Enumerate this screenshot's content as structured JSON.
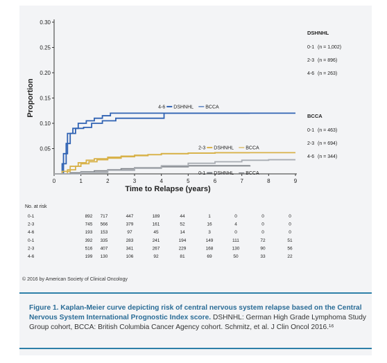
{
  "chart_data": {
    "type": "line",
    "xlabel": "Time to Relapse (years)",
    "ylabel": "Proportion",
    "xlim": [
      0,
      9
    ],
    "ylim": [
      0,
      0.3
    ],
    "x_ticks": [
      "0",
      "1",
      "2",
      "3",
      "4",
      "5",
      "6",
      "7",
      "8",
      "9"
    ],
    "y_ticks": [
      "0.30",
      "0.25",
      "0.20",
      "0.15",
      "0.10",
      "0.05"
    ],
    "series": [
      {
        "name": "DSHNHL 4-6",
        "color": "#2f62b3",
        "points": [
          [
            0,
            0
          ],
          [
            0.2,
            0
          ],
          [
            0.35,
            0.04
          ],
          [
            0.5,
            0.08
          ],
          [
            0.7,
            0.09
          ],
          [
            0.9,
            0.1
          ],
          [
            1.2,
            0.105
          ],
          [
            1.5,
            0.11
          ],
          [
            1.8,
            0.115
          ],
          [
            2.1,
            0.12
          ],
          [
            4.4,
            0.12
          ],
          [
            7.0,
            0.12
          ],
          [
            7.3,
            0.12
          ]
        ]
      },
      {
        "name": "BCCA 4-6",
        "color": "#2f62b3",
        "points": [
          [
            0,
            0
          ],
          [
            0.15,
            0
          ],
          [
            0.3,
            0.02
          ],
          [
            0.45,
            0.06
          ],
          [
            0.6,
            0.08
          ],
          [
            0.8,
            0.09
          ],
          [
            1.1,
            0.092
          ],
          [
            1.4,
            0.1
          ],
          [
            1.8,
            0.105
          ],
          [
            2.3,
            0.11
          ],
          [
            4.0,
            0.11
          ],
          [
            4.1,
            0.12
          ],
          [
            9.0,
            0.12
          ]
        ]
      },
      {
        "name": "DSHNHL 2-3",
        "color": "#d8b24a",
        "points": [
          [
            0,
            0
          ],
          [
            0.3,
            0.005
          ],
          [
            0.6,
            0.015
          ],
          [
            0.9,
            0.022
          ],
          [
            1.2,
            0.027
          ],
          [
            1.5,
            0.03
          ],
          [
            2.0,
            0.033
          ],
          [
            2.5,
            0.035
          ],
          [
            3.0,
            0.037
          ],
          [
            3.5,
            0.038
          ],
          [
            4.0,
            0.04
          ],
          [
            5.0,
            0.041
          ],
          [
            6.0,
            0.042
          ],
          [
            7.3,
            0.042
          ]
        ]
      },
      {
        "name": "BCCA 2-3",
        "color": "#d8b24a",
        "points": [
          [
            0,
            0
          ],
          [
            0.5,
            0.008
          ],
          [
            0.8,
            0.015
          ],
          [
            1.0,
            0.02
          ],
          [
            1.3,
            0.024
          ],
          [
            1.6,
            0.028
          ],
          [
            2.0,
            0.031
          ],
          [
            2.5,
            0.034
          ],
          [
            3.0,
            0.036
          ],
          [
            3.5,
            0.038
          ],
          [
            4.0,
            0.04
          ],
          [
            5.0,
            0.041
          ],
          [
            6.0,
            0.042
          ],
          [
            9.0,
            0.042
          ]
        ]
      },
      {
        "name": "DSHNHL 0-1",
        "color": "#7e8288",
        "points": [
          [
            0,
            0
          ],
          [
            0.6,
            0.002
          ],
          [
            1.0,
            0.004
          ],
          [
            1.5,
            0.006
          ],
          [
            2.0,
            0.008
          ],
          [
            2.5,
            0.01
          ],
          [
            3.0,
            0.012
          ],
          [
            4.0,
            0.014
          ],
          [
            5.0,
            0.016
          ],
          [
            7.3,
            0.017
          ]
        ]
      },
      {
        "name": "BCCA 0-1",
        "color": "#a8acb2",
        "points": [
          [
            0,
            0
          ],
          [
            1.0,
            0.003
          ],
          [
            2.0,
            0.007
          ],
          [
            3.0,
            0.011
          ],
          [
            4.0,
            0.016
          ],
          [
            5.0,
            0.021
          ],
          [
            6.0,
            0.024
          ],
          [
            7.0,
            0.027
          ],
          [
            8.0,
            0.028
          ],
          [
            9.0,
            0.028
          ]
        ]
      }
    ],
    "curve_labels": [
      {
        "group": "4-6",
        "a": "DSHNHL",
        "b": "BCCA",
        "color": "#2f62b3",
        "x": 4.3,
        "y": 0.133
      },
      {
        "group": "2-3",
        "a": "DSHNHL",
        "b": "BCCA",
        "color": "#d8b24a",
        "x": 5.8,
        "y": 0.052
      },
      {
        "group": "0-1",
        "a": "DSHNHL",
        "b": "BCCA",
        "color": "#7e8288",
        "x": 5.8,
        "y": 0.002
      }
    ],
    "legend": {
      "blocks": [
        {
          "title": "DSHNHL",
          "rows": [
            {
              "label": "0-1",
              "n": "(n = 1,002)"
            },
            {
              "label": "2-3",
              "n": "(n = 896)"
            },
            {
              "label": "4-6",
              "n": "(n = 263)"
            }
          ]
        },
        {
          "title": "BCCA",
          "rows": [
            {
              "label": "0-1",
              "n": "(n = 463)"
            },
            {
              "label": "2-3",
              "n": "(n = 694)"
            },
            {
              "label": "4-6",
              "n": "(n = 344)"
            }
          ]
        }
      ]
    },
    "risk_table": {
      "header": "No. at risk",
      "rows": [
        {
          "label": "0-1",
          "values": [
            "892",
            "717",
            "447",
            "189",
            "44",
            "1",
            "0",
            "0",
            "0"
          ]
        },
        {
          "label": "2-3",
          "values": [
            "745",
            "566",
            "379",
            "161",
            "52",
            "16",
            "4",
            "0",
            "0"
          ]
        },
        {
          "label": "4-6",
          "values": [
            "193",
            "153",
            "97",
            "45",
            "14",
            "3",
            "0",
            "0",
            "0"
          ]
        },
        {
          "label": "0-1",
          "values": [
            "392",
            "335",
            "283",
            "241",
            "194",
            "149",
            "111",
            "72",
            "51"
          ]
        },
        {
          "label": "2-3",
          "values": [
            "516",
            "407",
            "341",
            "267",
            "229",
            "168",
            "130",
            "90",
            "56"
          ]
        },
        {
          "label": "4-6",
          "values": [
            "199",
            "130",
            "106",
            "92",
            "81",
            "69",
            "50",
            "33",
            "22"
          ]
        }
      ]
    }
  },
  "copyright": "© 2016 by American Society of Clinical Oncology",
  "caption": {
    "bold": "Figure 1. Kaplan-Meier curve depicting risk of central nervous system relapse based on the Central Nervous System International Prognostic Index score.",
    "normal": " DSHNHL: German High Grade Lymphoma Study Group cohort, BCCA: British Columbia Cancer Agency cohort. Schmitz, et al. J Clin Oncol 2016.¹⁶"
  }
}
